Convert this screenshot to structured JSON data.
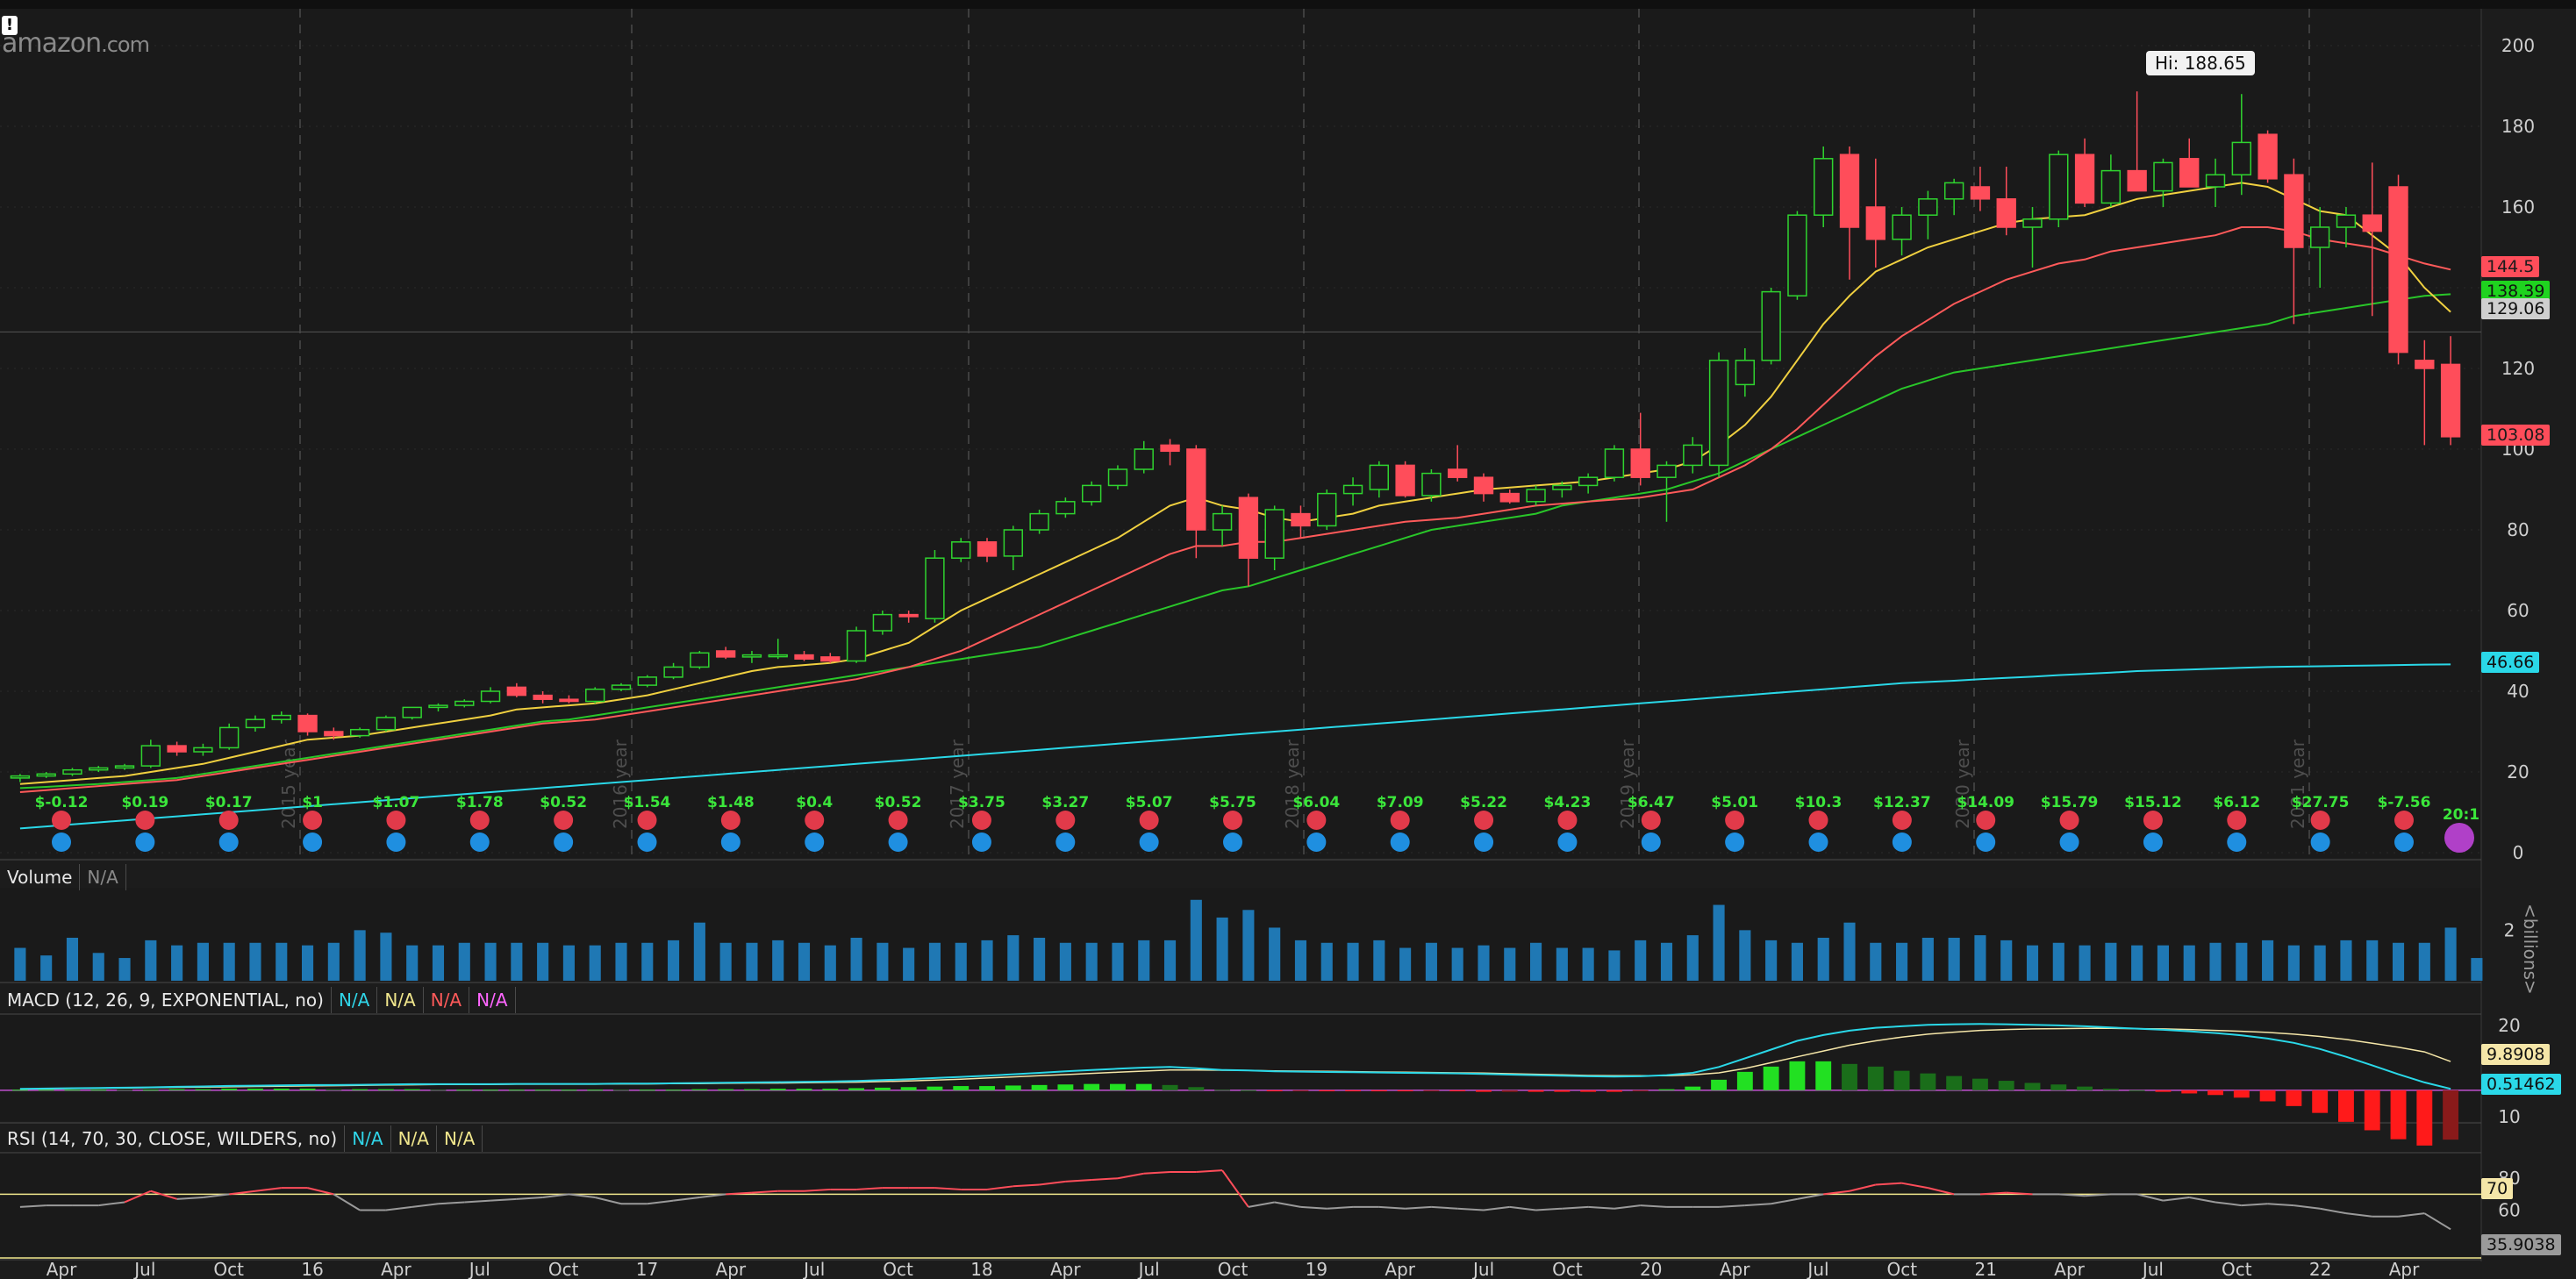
{
  "logo": {
    "text": "amazon",
    "suffix": ".com"
  },
  "warning_icon": "exclamation-icon",
  "hi_label": "Hi: 188.65",
  "price_axis": {
    "ticks": [
      "200",
      "180",
      "160",
      "140",
      "120",
      "100",
      "80",
      "60",
      "40",
      "20",
      "0"
    ]
  },
  "price_tags": [
    {
      "value": "144.5",
      "color": "red"
    },
    {
      "value": "138.39",
      "color": "green"
    },
    {
      "value": "129.06",
      "color": "gray"
    },
    {
      "value": "103.08",
      "color": "red"
    },
    {
      "value": "46.66",
      "color": "cyan"
    }
  ],
  "volume": {
    "label": "Volume",
    "value": "N/A",
    "axis_ticks": [
      "2"
    ],
    "unit": "<billions>"
  },
  "macd": {
    "label": "MACD (12, 26, 9, EXPONENTIAL, no)",
    "values": [
      "N/A",
      "N/A",
      "N/A",
      "N/A"
    ],
    "axis_ticks": [
      "20",
      "10"
    ],
    "tags": [
      "9.8908",
      "0.51462"
    ]
  },
  "rsi": {
    "label": "RSI (14, 70, 30, CLOSE, WILDERS, no)",
    "values": [
      "N/A",
      "N/A",
      "N/A"
    ],
    "axis_ticks": [
      "80",
      "60"
    ],
    "tags": [
      "70",
      "35.9038"
    ]
  },
  "time_axis": {
    "labels": [
      "Apr",
      "Jul",
      "Oct",
      "16",
      "Apr",
      "Jul",
      "Oct",
      "17",
      "Apr",
      "Jul",
      "Oct",
      "18",
      "Apr",
      "Jul",
      "Oct",
      "19",
      "Apr",
      "Jul",
      "Oct",
      "20",
      "Apr",
      "Jul",
      "Oct",
      "21",
      "Apr",
      "Jul",
      "Oct",
      "22",
      "Apr"
    ]
  },
  "year_markers": [
    "2015 year",
    "2016 year",
    "2017 year",
    "2018 year",
    "2019 year",
    "2020 year",
    "2021 year"
  ],
  "earnings": [
    "$-0.12",
    "$0.19",
    "$0.17",
    "$1",
    "$1.07",
    "$1.78",
    "$0.52",
    "$1.54",
    "$1.48",
    "$0.4",
    "$0.52",
    "$3.75",
    "$3.27",
    "$5.07",
    "$5.75",
    "$6.04",
    "$7.09",
    "$5.22",
    "$4.23",
    "$6.47",
    "$5.01",
    "$10.3",
    "$12.37",
    "$14.09",
    "$15.79",
    "$15.12",
    "$6.12",
    "$27.75",
    "$-7.56"
  ],
  "split_label": "20:1",
  "colors": {
    "up": "#2fd32f",
    "down": "#ff4d5a",
    "sma_yellow": "#f0d040",
    "sma_red": "#ff5a5a",
    "sma_green": "#29c629",
    "sma_cyan": "#2ad8e8",
    "volume": "#1f78b4"
  },
  "chart_data": {
    "type": "candlestick",
    "title": "",
    "y_range": [
      0,
      200
    ],
    "candles": [
      {
        "o": 18.5,
        "h": 19.5,
        "l": 17.5,
        "c": 19
      },
      {
        "o": 19,
        "h": 20,
        "l": 18.5,
        "c": 19.5
      },
      {
        "o": 19.5,
        "h": 21,
        "l": 19,
        "c": 20.5
      },
      {
        "o": 20.5,
        "h": 21.5,
        "l": 20,
        "c": 21
      },
      {
        "o": 21,
        "h": 22,
        "l": 20.5,
        "c": 21.5
      },
      {
        "o": 21.5,
        "h": 28,
        "l": 21,
        "c": 26.5
      },
      {
        "o": 26.5,
        "h": 27.5,
        "l": 24,
        "c": 25
      },
      {
        "o": 25,
        "h": 27,
        "l": 24,
        "c": 26
      },
      {
        "o": 26,
        "h": 32,
        "l": 25.5,
        "c": 31
      },
      {
        "o": 31,
        "h": 34,
        "l": 30,
        "c": 33
      },
      {
        "o": 33,
        "h": 35,
        "l": 32,
        "c": 34
      },
      {
        "o": 34,
        "h": 34.5,
        "l": 29,
        "c": 30
      },
      {
        "o": 30,
        "h": 31,
        "l": 28,
        "c": 29
      },
      {
        "o": 29,
        "h": 31,
        "l": 28.5,
        "c": 30.5
      },
      {
        "o": 30.5,
        "h": 34,
        "l": 30,
        "c": 33.5
      },
      {
        "o": 33.5,
        "h": 36,
        "l": 33,
        "c": 36
      },
      {
        "o": 36,
        "h": 37,
        "l": 35,
        "c": 36.5
      },
      {
        "o": 36.5,
        "h": 38,
        "l": 36,
        "c": 37.5
      },
      {
        "o": 37.5,
        "h": 41,
        "l": 37,
        "c": 40
      },
      {
        "o": 41,
        "h": 42,
        "l": 38.5,
        "c": 39
      },
      {
        "o": 39,
        "h": 40,
        "l": 37,
        "c": 38
      },
      {
        "o": 38,
        "h": 39,
        "l": 37,
        "c": 37.5
      },
      {
        "o": 37.5,
        "h": 41,
        "l": 37,
        "c": 40.5
      },
      {
        "o": 40.5,
        "h": 42,
        "l": 40,
        "c": 41.5
      },
      {
        "o": 41.5,
        "h": 44,
        "l": 41,
        "c": 43.5
      },
      {
        "o": 43.5,
        "h": 47,
        "l": 43,
        "c": 46
      },
      {
        "o": 46,
        "h": 50,
        "l": 45.5,
        "c": 49.5
      },
      {
        "o": 50,
        "h": 51,
        "l": 48,
        "c": 48.5
      },
      {
        "o": 48.5,
        "h": 50,
        "l": 47,
        "c": 49
      },
      {
        "o": 49,
        "h": 53,
        "l": 48,
        "c": 49
      },
      {
        "o": 49,
        "h": 50,
        "l": 47.5,
        "c": 48
      },
      {
        "o": 48.5,
        "h": 49.5,
        "l": 47,
        "c": 47.5
      },
      {
        "o": 47.5,
        "h": 56,
        "l": 47,
        "c": 55
      },
      {
        "o": 55,
        "h": 60,
        "l": 54,
        "c": 59
      },
      {
        "o": 59,
        "h": 60,
        "l": 57,
        "c": 58.5
      },
      {
        "o": 58,
        "h": 75,
        "l": 57,
        "c": 73
      },
      {
        "o": 73,
        "h": 78,
        "l": 72,
        "c": 77
      },
      {
        "o": 77,
        "h": 78,
        "l": 72,
        "c": 73.5
      },
      {
        "o": 73.5,
        "h": 81,
        "l": 70,
        "c": 80
      },
      {
        "o": 80,
        "h": 85,
        "l": 79,
        "c": 84
      },
      {
        "o": 84,
        "h": 88,
        "l": 83,
        "c": 87
      },
      {
        "o": 87,
        "h": 92,
        "l": 86,
        "c": 91
      },
      {
        "o": 91,
        "h": 96,
        "l": 90,
        "c": 95
      },
      {
        "o": 95,
        "h": 102,
        "l": 94,
        "c": 100
      },
      {
        "o": 101,
        "h": 102.5,
        "l": 96,
        "c": 99.5
      },
      {
        "o": 100,
        "h": 101,
        "l": 73,
        "c": 80
      },
      {
        "o": 80,
        "h": 86,
        "l": 76,
        "c": 84
      },
      {
        "o": 88,
        "h": 89,
        "l": 66,
        "c": 73
      },
      {
        "o": 73,
        "h": 86,
        "l": 70,
        "c": 85
      },
      {
        "o": 84,
        "h": 86,
        "l": 78,
        "c": 81
      },
      {
        "o": 81,
        "h": 90,
        "l": 80,
        "c": 89
      },
      {
        "o": 89,
        "h": 93,
        "l": 86,
        "c": 91
      },
      {
        "o": 90,
        "h": 97,
        "l": 88,
        "c": 96
      },
      {
        "o": 96,
        "h": 97,
        "l": 88,
        "c": 88.5
      },
      {
        "o": 88.5,
        "h": 95,
        "l": 87,
        "c": 94
      },
      {
        "o": 95,
        "h": 101,
        "l": 92,
        "c": 93
      },
      {
        "o": 93,
        "h": 94,
        "l": 87,
        "c": 89
      },
      {
        "o": 89,
        "h": 90,
        "l": 86.5,
        "c": 87
      },
      {
        "o": 87,
        "h": 91,
        "l": 86,
        "c": 90
      },
      {
        "o": 90,
        "h": 92,
        "l": 88,
        "c": 91
      },
      {
        "o": 91,
        "h": 94,
        "l": 89,
        "c": 93
      },
      {
        "o": 93,
        "h": 101,
        "l": 92,
        "c": 100
      },
      {
        "o": 100,
        "h": 109,
        "l": 91,
        "c": 93
      },
      {
        "o": 93,
        "h": 97,
        "l": 82,
        "c": 96
      },
      {
        "o": 96,
        "h": 103,
        "l": 94,
        "c": 101
      },
      {
        "o": 96,
        "h": 124,
        "l": 93,
        "c": 122
      },
      {
        "o": 116,
        "h": 125,
        "l": 113,
        "c": 122
      },
      {
        "o": 122,
        "h": 140,
        "l": 121,
        "c": 139
      },
      {
        "o": 138,
        "h": 159,
        "l": 137,
        "c": 158
      },
      {
        "o": 158,
        "h": 175,
        "l": 155,
        "c": 172
      },
      {
        "o": 173,
        "h": 175,
        "l": 142,
        "c": 155
      },
      {
        "o": 160,
        "h": 172,
        "l": 145,
        "c": 152
      },
      {
        "o": 152,
        "h": 160,
        "l": 148,
        "c": 158
      },
      {
        "o": 158,
        "h": 164,
        "l": 152,
        "c": 162
      },
      {
        "o": 162,
        "h": 167,
        "l": 158,
        "c": 166
      },
      {
        "o": 165,
        "h": 170,
        "l": 159,
        "c": 162
      },
      {
        "o": 162,
        "h": 170,
        "l": 153,
        "c": 155
      },
      {
        "o": 155,
        "h": 160,
        "l": 145,
        "c": 157
      },
      {
        "o": 157,
        "h": 174,
        "l": 155,
        "c": 173
      },
      {
        "o": 173,
        "h": 177,
        "l": 160,
        "c": 161
      },
      {
        "o": 161,
        "h": 173,
        "l": 160,
        "c": 169
      },
      {
        "o": 169,
        "h": 188.65,
        "l": 164,
        "c": 164
      },
      {
        "o": 164,
        "h": 172,
        "l": 160,
        "c": 171
      },
      {
        "o": 172,
        "h": 177,
        "l": 165,
        "c": 165
      },
      {
        "o": 165,
        "h": 172,
        "l": 160,
        "c": 168
      },
      {
        "o": 168,
        "h": 188,
        "l": 163,
        "c": 176
      },
      {
        "o": 178,
        "h": 179,
        "l": 166,
        "c": 167
      },
      {
        "o": 168,
        "h": 172,
        "l": 131,
        "c": 150
      },
      {
        "o": 150,
        "h": 160,
        "l": 140,
        "c": 155
      },
      {
        "o": 155,
        "h": 160,
        "l": 150,
        "c": 158
      },
      {
        "o": 158,
        "h": 171,
        "l": 133,
        "c": 154
      },
      {
        "o": 165,
        "h": 168,
        "l": 121,
        "c": 124
      },
      {
        "o": 122,
        "h": 127,
        "l": 101,
        "c": 120
      },
      {
        "o": 121,
        "h": 128,
        "l": 101,
        "c": 103.08
      }
    ],
    "sma_yellow": [
      17,
      17.5,
      18,
      18.5,
      19,
      20,
      21,
      22,
      23.5,
      25,
      26.5,
      28,
      28.5,
      29,
      30,
      31,
      32,
      33,
      34,
      35.5,
      36,
      36.5,
      37,
      38,
      39,
      40.5,
      42,
      43.5,
      45,
      46,
      46.5,
      47,
      48,
      50,
      52,
      56,
      60,
      63,
      66,
      69,
      72,
      75,
      78,
      82,
      86,
      88,
      86,
      85,
      83,
      82,
      83,
      84,
      86,
      87,
      88,
      89,
      90,
      90.5,
      91,
      91.5,
      92,
      93,
      94,
      95,
      97,
      101,
      106,
      113,
      122,
      131,
      138,
      144,
      147,
      150,
      152,
      154,
      156,
      157,
      157.5,
      158,
      160,
      162,
      163,
      164,
      165,
      166,
      165,
      162,
      159,
      158,
      153,
      148,
      140,
      134
    ],
    "sma_red": [
      15,
      15.5,
      16,
      16.5,
      17,
      17.5,
      18,
      19,
      20,
      21,
      22,
      23,
      24,
      25,
      26,
      27,
      28,
      29,
      30,
      31,
      32,
      32.5,
      33,
      34,
      35,
      36,
      37,
      38,
      39,
      40,
      41,
      42,
      43,
      44.5,
      46,
      48,
      50,
      53,
      56,
      59,
      62,
      65,
      68,
      71,
      74,
      76,
      76,
      77,
      77,
      78,
      79,
      80,
      81,
      82,
      82.5,
      83,
      84,
      85,
      86,
      86.5,
      87,
      87.5,
      88,
      89,
      90,
      93,
      96,
      100,
      105,
      111,
      117,
      123,
      128,
      132,
      136,
      139,
      142,
      144,
      146,
      147,
      149,
      150,
      151,
      152,
      153,
      155,
      155,
      154,
      152,
      151,
      150,
      148,
      146,
      144.5
    ],
    "sma_green": [
      16,
      16.3,
      16.7,
      17,
      17.5,
      18,
      18.5,
      19.5,
      20.5,
      21.5,
      22.5,
      23.5,
      24.5,
      25.5,
      26.5,
      27.5,
      28.5,
      29.5,
      30.5,
      31.5,
      32.5,
      33,
      34,
      35,
      36,
      37,
      38,
      39,
      40,
      41,
      42,
      43,
      44,
      45,
      46,
      47,
      48,
      49,
      50,
      51,
      53,
      55,
      57,
      59,
      61,
      63,
      65,
      66,
      68,
      70,
      72,
      74,
      76,
      78,
      80,
      81,
      82,
      83,
      84,
      86,
      87,
      88,
      89,
      90,
      92,
      94,
      97,
      100,
      103,
      106,
      109,
      112,
      115,
      117,
      119,
      120,
      121,
      122,
      123,
      124,
      125,
      126,
      127,
      128,
      129,
      130,
      131,
      133,
      134,
      135,
      136,
      137,
      138,
      138.39
    ],
    "sma_cyan": [
      6,
      6.5,
      7,
      7.5,
      8,
      8.5,
      9,
      9.5,
      10,
      10.5,
      11,
      11.5,
      12,
      12.5,
      13,
      13.5,
      14,
      14.5,
      15,
      15.5,
      16,
      16.5,
      17,
      17.5,
      18,
      18.5,
      19,
      19.5,
      20,
      20.5,
      21,
      21.5,
      22,
      22.5,
      23,
      23.5,
      24,
      24.5,
      25,
      25.5,
      26,
      26.5,
      27,
      27.5,
      28,
      28.5,
      29,
      29.5,
      30,
      30.5,
      31,
      31.5,
      32,
      32.5,
      33,
      33.5,
      34,
      34.5,
      35,
      35.5,
      36,
      36.5,
      37,
      37.5,
      38,
      38.5,
      39,
      39.5,
      40,
      40.5,
      41,
      41.5,
      42,
      42.3,
      42.6,
      43,
      43.3,
      43.6,
      44,
      44.3,
      44.6,
      45,
      45.2,
      45.4,
      45.6,
      45.8,
      46,
      46.1,
      46.2,
      46.3,
      46.4,
      46.5,
      46.6,
      46.66
    ],
    "volume": [
      1.3,
      1.0,
      1.7,
      1.1,
      0.9,
      1.6,
      1.4,
      1.5,
      1.5,
      1.5,
      1.5,
      1.4,
      1.5,
      2.0,
      1.9,
      1.4,
      1.4,
      1.5,
      1.5,
      1.5,
      1.5,
      1.4,
      1.4,
      1.5,
      1.5,
      1.6,
      2.3,
      1.5,
      1.5,
      1.6,
      1.5,
      1.4,
      1.7,
      1.5,
      1.3,
      1.5,
      1.5,
      1.6,
      1.8,
      1.7,
      1.5,
      1.5,
      1.5,
      1.6,
      1.6,
      3.2,
      2.5,
      2.8,
      2.1,
      1.6,
      1.5,
      1.5,
      1.6,
      1.3,
      1.5,
      1.3,
      1.4,
      1.3,
      1.5,
      1.3,
      1.3,
      1.2,
      1.6,
      1.5,
      1.8,
      3.0,
      2.0,
      1.6,
      1.5,
      1.7,
      2.3,
      1.5,
      1.5,
      1.7,
      1.7,
      1.8,
      1.6,
      1.4,
      1.5,
      1.4,
      1.5,
      1.4,
      1.4,
      1.4,
      1.5,
      1.5,
      1.6,
      1.4,
      1.4,
      1.6,
      1.6,
      1.5,
      1.5,
      2.1,
      0.9
    ],
    "rsi": [
      62,
      63,
      63,
      63,
      65,
      72,
      67,
      68,
      70,
      72,
      74,
      74,
      70,
      60,
      60,
      62,
      64,
      65,
      66,
      67,
      68,
      70,
      68,
      64,
      64,
      66,
      68,
      70,
      71,
      72,
      72,
      73,
      73,
      74,
      74,
      74,
      73,
      73,
      75,
      76,
      78,
      79,
      80,
      83,
      84,
      84,
      85,
      62,
      65,
      62,
      61,
      62,
      62,
      61,
      62,
      61,
      60,
      62,
      60,
      61,
      62,
      61,
      63,
      62,
      62,
      62,
      63,
      64,
      67,
      70,
      72,
      76,
      77,
      74,
      70,
      70,
      71,
      70,
      70,
      69,
      70,
      70,
      66,
      68,
      65,
      63,
      64,
      63,
      61,
      58,
      56,
      56,
      58,
      48,
      46,
      38,
      37,
      36
    ],
    "macd": [
      0.5,
      0.6,
      0.7,
      0.8,
      0.9,
      1.0,
      1.2,
      1.3,
      1.5,
      1.6,
      1.7,
      1.8,
      1.8,
      1.9,
      2.0,
      2.1,
      2.1,
      2.1,
      2.1,
      2.2,
      2.2,
      2.2,
      2.2,
      2.3,
      2.3,
      2.4,
      2.5,
      2.6,
      2.7,
      2.8,
      2.9,
      3.0,
      3.2,
      3.5,
      3.8,
      4.2,
      4.6,
      5.0,
      5.5,
      6.0,
      6.5,
      7.0,
      7.4,
      7.8,
      8.0,
      7.6,
      7.0,
      6.8,
      6.5,
      6.4,
      6.3,
      6.2,
      6.1,
      6.0,
      5.9,
      5.8,
      5.6,
      5.4,
      5.2,
      5.0,
      4.8,
      4.7,
      4.8,
      5.2,
      6.0,
      8.0,
      11.0,
      14.0,
      17.0,
      19.0,
      20.5,
      21.5,
      22.0,
      22.5,
      22.7,
      22.8,
      22.7,
      22.5,
      22.3,
      22.0,
      21.6,
      21.2,
      20.8,
      20.3,
      19.7,
      18.9,
      17.8,
      16.3,
      14.2,
      11.5,
      8.6,
      5.5,
      2.7,
      0.51
    ],
    "macd_signal": [
      0.4,
      0.5,
      0.6,
      0.7,
      0.8,
      0.9,
      1.0,
      1.1,
      1.2,
      1.3,
      1.4,
      1.5,
      1.6,
      1.7,
      1.8,
      1.9,
      2.0,
      2.0,
      2.0,
      2.1,
      2.1,
      2.1,
      2.1,
      2.2,
      2.2,
      2.3,
      2.3,
      2.4,
      2.5,
      2.5,
      2.6,
      2.7,
      2.8,
      3.0,
      3.2,
      3.5,
      3.8,
      4.2,
      4.6,
      5.0,
      5.4,
      5.8,
      6.2,
      6.6,
      7.0,
      7.0,
      6.9,
      6.8,
      6.7,
      6.6,
      6.5,
      6.4,
      6.3,
      6.2,
      6.1,
      6.0,
      5.9,
      5.7,
      5.5,
      5.3,
      5.1,
      5.0,
      5.0,
      5.0,
      5.3,
      6.0,
      7.5,
      9.5,
      11.5,
      13.5,
      15.5,
      17.0,
      18.3,
      19.3,
      20.0,
      20.6,
      20.9,
      21.1,
      21.2,
      21.3,
      21.3,
      21.2,
      21.1,
      20.9,
      20.6,
      20.3,
      19.9,
      19.3,
      18.5,
      17.5,
      16.2,
      14.8,
      13.2,
      9.89
    ],
    "x_labels": [
      "Apr",
      "Jul",
      "Oct",
      "16",
      "Apr",
      "Jul",
      "Oct",
      "17",
      "Apr",
      "Jul",
      "Oct",
      "18",
      "Apr",
      "Jul",
      "Oct",
      "19",
      "Apr",
      "Jul",
      "Oct",
      "20",
      "Apr",
      "Jul",
      "Oct",
      "21",
      "Apr",
      "Jul",
      "Oct",
      "22",
      "Apr"
    ]
  }
}
